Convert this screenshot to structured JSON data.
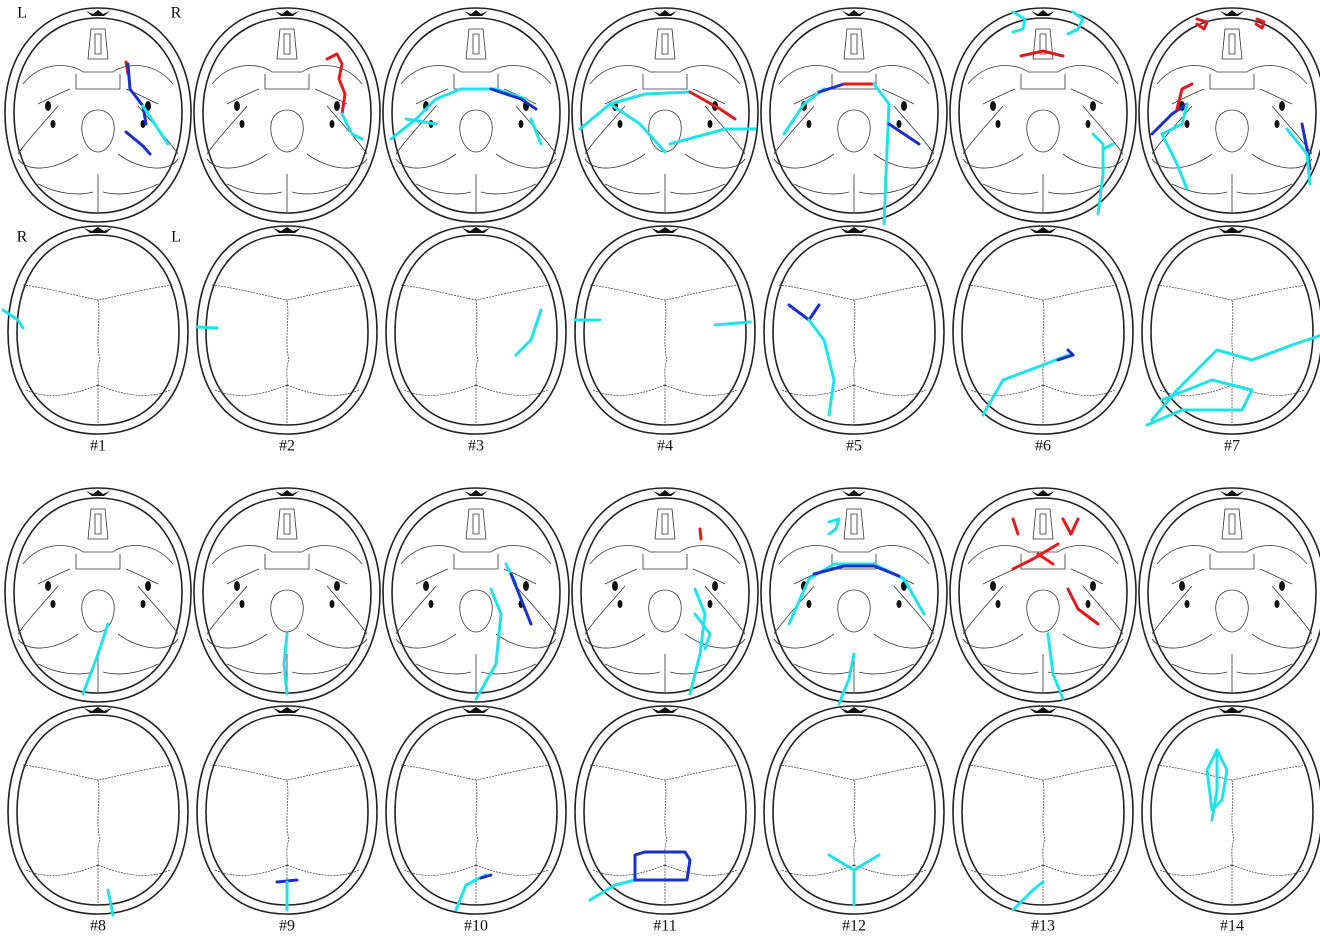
{
  "side_labels": {
    "base_left": "L",
    "base_right": "R",
    "vault_left": "R",
    "vault_right": "L"
  },
  "cases": [
    "#1",
    "#2",
    "#3",
    "#4",
    "#5",
    "#6",
    "#7",
    "#8",
    "#9",
    "#10",
    "#11",
    "#12",
    "#13",
    "#14"
  ]
}
